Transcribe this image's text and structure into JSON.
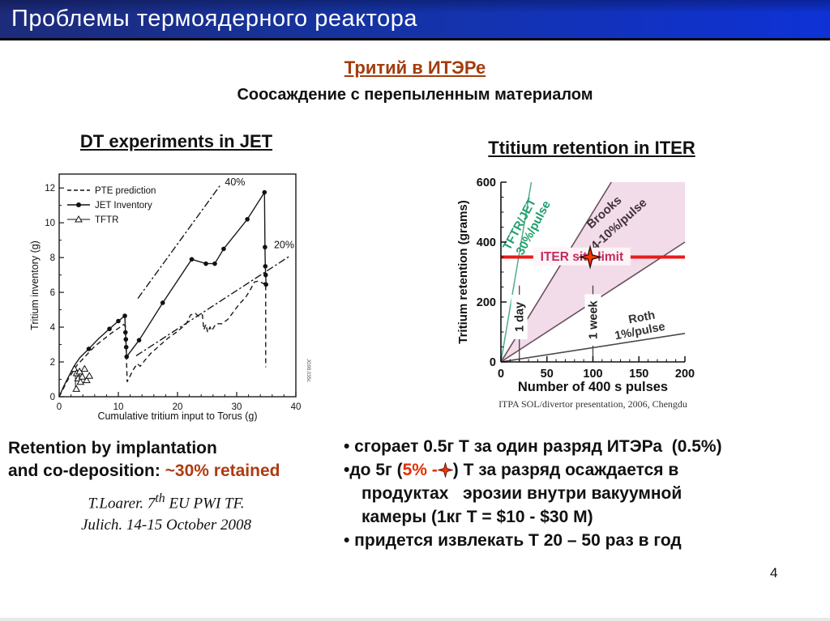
{
  "slide": {
    "header_title": "Проблемы термоядерного реактора",
    "subtitle": "Тритий в ИТЭРе",
    "subtitle2": "Соосаждение с перепыленным материалом",
    "page_number": "4"
  },
  "left_panel": {
    "note_line1": "Retention by implantation",
    "note_line2_prefix": "and co-deposition: ",
    "note_line2_highlight": "~30% retained",
    "citation_l1_a": "T.Loarer. 7",
    "citation_l1_sup": "th",
    "citation_l1_b": " EU PWI TF.",
    "citation_l2": "Julich. 14-15 October 2008"
  },
  "right_panel": {
    "bullets": {
      "b1": "• сгорает 0.5г Т за один разряд ИТЭРа  (0.5%)",
      "b2_l1_pre": "•до 5г (",
      "b2_l1_red": "5% -",
      "b2_l1_post": ") Т за разряд осаждается в",
      "b2_l2": "продуктах   эрозии внутри вакуумной",
      "b2_l3": "камеры (1кг Т = $10 - $30 М)",
      "b3": "• придется извлекать Т 20 – 50 раз в год"
    }
  },
  "colors": {
    "header_gradient_left": "#1d2b7a",
    "header_gradient_right": "#0e32d6",
    "subtitle_rust": "#a33c0a",
    "highlight_rust": "#b03a10",
    "bullet_red": "#e03008",
    "iter_limit_red": "#e81c1c",
    "tftr_jet_green": "#1fa06c",
    "brooks_pink_band": "#f2dcea",
    "brooks_line": "#6a4f5f"
  },
  "chart_data": [
    {
      "type": "line",
      "title": "DT experiments in JET",
      "xlabel": "Cumulative tritium input to Torus (g)",
      "ylabel": "Tritium inventory (g)",
      "xlim": [
        0,
        40
      ],
      "ylim": [
        0,
        12.8
      ],
      "xticks": [
        0,
        10,
        20,
        30,
        40
      ],
      "yticks": [
        0,
        2,
        4,
        6,
        8,
        10,
        12
      ],
      "xminor": 2,
      "yminor": 1,
      "legend": [
        "PTE prediction",
        "JET Inventory",
        "TFTR"
      ],
      "figure_code": "JG98.035c",
      "annotations": [
        {
          "text": "40%",
          "x": 28.0,
          "y": 12.15
        },
        {
          "text": "20%",
          "x": 36.3,
          "y": 8.55
        }
      ],
      "series": [
        {
          "name": "PTE prediction",
          "style": "dashed",
          "points": [
            [
              0,
              0
            ],
            [
              1.5,
              1.0
            ],
            [
              3,
              1.8
            ],
            [
              4.5,
              2.35
            ],
            [
              6,
              2.9
            ],
            [
              7.5,
              3.3
            ],
            [
              9,
              3.7
            ],
            [
              10.3,
              4.0
            ],
            [
              10.9,
              4.15
            ],
            [
              11.2,
              4.05
            ],
            [
              11.5,
              0.85
            ],
            [
              12.5,
              1.55
            ],
            [
              13.2,
              1.9
            ],
            [
              13.7,
              1.75
            ],
            [
              14.5,
              2.1
            ],
            [
              15.5,
              2.5
            ],
            [
              17,
              2.95
            ],
            [
              18.5,
              3.4
            ],
            [
              20,
              3.75
            ],
            [
              21.5,
              4.2
            ],
            [
              22.2,
              4.7
            ],
            [
              23,
              4.8
            ],
            [
              23.6,
              4.6
            ],
            [
              24.2,
              4.7
            ],
            [
              24.45,
              3.85
            ],
            [
              24.8,
              4.15
            ],
            [
              25.1,
              3.7
            ],
            [
              25.5,
              4.0
            ],
            [
              25.8,
              3.8
            ],
            [
              26.5,
              4.2
            ],
            [
              27.5,
              4.2
            ],
            [
              28.5,
              4.45
            ],
            [
              29.5,
              4.9
            ],
            [
              30.5,
              5.35
            ],
            [
              31.5,
              5.7
            ],
            [
              32.3,
              6.15
            ],
            [
              33,
              6.6
            ],
            [
              33.8,
              6.65
            ],
            [
              34.5,
              6.5
            ],
            [
              34.9,
              6.6
            ]
          ]
        },
        {
          "name": "PTE prediction (end drop)",
          "style": "dashed",
          "points": [
            [
              34.9,
              6.4
            ],
            [
              34.9,
              1.7
            ]
          ]
        },
        {
          "name": "JET Inventory",
          "style": "solid",
          "points": [
            [
              0,
              0
            ],
            [
              0.7,
              0.55
            ],
            [
              1.5,
              1.1
            ],
            [
              2.5,
              1.75
            ],
            [
              3.5,
              2.25
            ],
            [
              5,
              2.75
            ],
            [
              6.7,
              3.35
            ],
            [
              8.5,
              3.9
            ],
            [
              10,
              4.35
            ],
            [
              11.1,
              4.65
            ],
            [
              11.2,
              3.7
            ],
            [
              11.27,
              3.3
            ],
            [
              11.33,
              2.85
            ],
            [
              11.4,
              2.3
            ],
            [
              13.5,
              3.25
            ],
            [
              17.5,
              5.4
            ],
            [
              22.4,
              7.9
            ],
            [
              24.8,
              7.65
            ],
            [
              26.3,
              7.65
            ],
            [
              27.8,
              8.5
            ],
            [
              31.8,
              10.2
            ],
            [
              34.7,
              11.75
            ],
            [
              34.78,
              8.6
            ],
            [
              34.84,
              7.5
            ],
            [
              34.9,
              7.0
            ],
            [
              34.96,
              6.45
            ]
          ]
        },
        {
          "name": "40% reference",
          "style": "dashdot",
          "points": [
            [
              13.3,
              5.65
            ],
            [
              27.2,
              12.15
            ]
          ]
        },
        {
          "name": "20% reference",
          "style": "dashdot",
          "points": [
            [
              13.0,
              2.35
            ],
            [
              38.8,
              8.05
            ]
          ]
        },
        {
          "name": "TFTR error bar",
          "style": "thin",
          "points": [
            [
              2.75,
              0.45
            ],
            [
              2.75,
              1.55
            ]
          ]
        }
      ],
      "jet_markers": [
        [
          5,
          2.75
        ],
        [
          8.5,
          3.9
        ],
        [
          10,
          4.35
        ],
        [
          11.1,
          4.65
        ],
        [
          11.2,
          3.7
        ],
        [
          11.27,
          3.3
        ],
        [
          11.33,
          2.85
        ],
        [
          11.4,
          2.3
        ],
        [
          13.5,
          3.25
        ],
        [
          17.5,
          5.4
        ],
        [
          22.4,
          7.9
        ],
        [
          24.8,
          7.65
        ],
        [
          26.3,
          7.65
        ],
        [
          27.8,
          8.5
        ],
        [
          31.8,
          10.2
        ],
        [
          34.7,
          11.75
        ],
        [
          34.78,
          8.6
        ],
        [
          34.84,
          7.5
        ],
        [
          34.9,
          7.0
        ],
        [
          34.96,
          6.45
        ]
      ],
      "tftr_points": [
        [
          2.6,
          1.6
        ],
        [
          2.95,
          1.35
        ],
        [
          3.2,
          1.05
        ],
        [
          3.45,
          1.45
        ],
        [
          3.6,
          0.85
        ],
        [
          3.9,
          1.15
        ],
        [
          4.3,
          1.6
        ],
        [
          4.65,
          0.95
        ],
        [
          5.1,
          1.2
        ],
        [
          2.9,
          0.45
        ]
      ]
    },
    {
      "type": "line",
      "title": "Ttitium retention in ITER",
      "xlabel": "Number of 400 s pulses",
      "ylabel": "Tritium retention (grams)",
      "caption": "ITPA SOL/divertor presentation, 2006, Chengdu",
      "xlim": [
        0,
        200
      ],
      "ylim": [
        0,
        600
      ],
      "xticks": [
        0,
        50,
        100,
        150,
        200
      ],
      "yticks": [
        0,
        200,
        400,
        600
      ],
      "xminor": 10,
      "yminor": 50,
      "band": {
        "name": "Brooks 4-10%/pulse range",
        "fill": "#f2dcea",
        "points": [
          [
            0,
            0
          ],
          [
            120,
            600
          ],
          [
            200,
            600
          ],
          [
            200,
            400
          ]
        ]
      },
      "lines": [
        {
          "name": "Brooks upper 10%/pulse",
          "color": "#6a4f5f",
          "width": 1.6,
          "points": [
            [
              0,
              0
            ],
            [
              120,
              600
            ]
          ]
        },
        {
          "name": "Brooks lower 4%/pulse",
          "color": "#6a4f5f",
          "width": 1.6,
          "points": [
            [
              0,
              0
            ],
            [
              200,
              400
            ]
          ]
        },
        {
          "name": "TFTR/JET 30%/pulse",
          "color": "#4fae87",
          "width": 1.5,
          "points": [
            [
              0,
              0
            ],
            [
              33,
              600
            ]
          ]
        },
        {
          "name": "Roth 1%/pulse",
          "color": "#4a4a4a",
          "width": 1.6,
          "points": [
            [
              0,
              0
            ],
            [
              200,
              95
            ]
          ]
        },
        {
          "name": "ITER site limit",
          "color": "#e81c1c",
          "width": 4,
          "points": [
            [
              0,
              350
            ],
            [
              200,
              350
            ]
          ]
        }
      ],
      "ref_lines": [
        {
          "x": 20,
          "label": "1 day",
          "ymax": 255,
          "label_y": 150
        },
        {
          "x": 100,
          "label": "1 week",
          "ymax": 255,
          "label_y": 140
        }
      ],
      "labels": [
        {
          "text": "TFTR/JET",
          "x": 20,
          "y": 460,
          "rotate": -62,
          "color": "#1fa06c",
          "size": 15
        },
        {
          "text": "30%/pulse",
          "x": 35,
          "y": 448,
          "rotate": -62,
          "color": "#1fa06c",
          "size": 15
        },
        {
          "text": "Brooks",
          "x": 112,
          "y": 500,
          "rotate": -42,
          "color": "#3f303c",
          "size": 15
        },
        {
          "text": "4-10%/pulse",
          "x": 128,
          "y": 460,
          "rotate": -42,
          "color": "#3f303c",
          "size": 15
        },
        {
          "text": "Roth",
          "x": 153,
          "y": 150,
          "rotate": -11,
          "color": "#333333",
          "size": 14.5
        },
        {
          "text": "1%/pulse",
          "x": 151,
          "y": 104,
          "rotate": -11,
          "color": "#333333",
          "size": 14.5
        },
        {
          "text": "ITER site limit",
          "x": 88,
          "y": 352,
          "rotate": 0,
          "color": "#c62a5a",
          "size": 15.5,
          "bg": "#fdf4f8",
          "bgw": 120,
          "bgh": 22
        }
      ],
      "marker": {
        "shape": "star4",
        "x": 97,
        "y": 350,
        "color": "#ff3603"
      }
    }
  ]
}
